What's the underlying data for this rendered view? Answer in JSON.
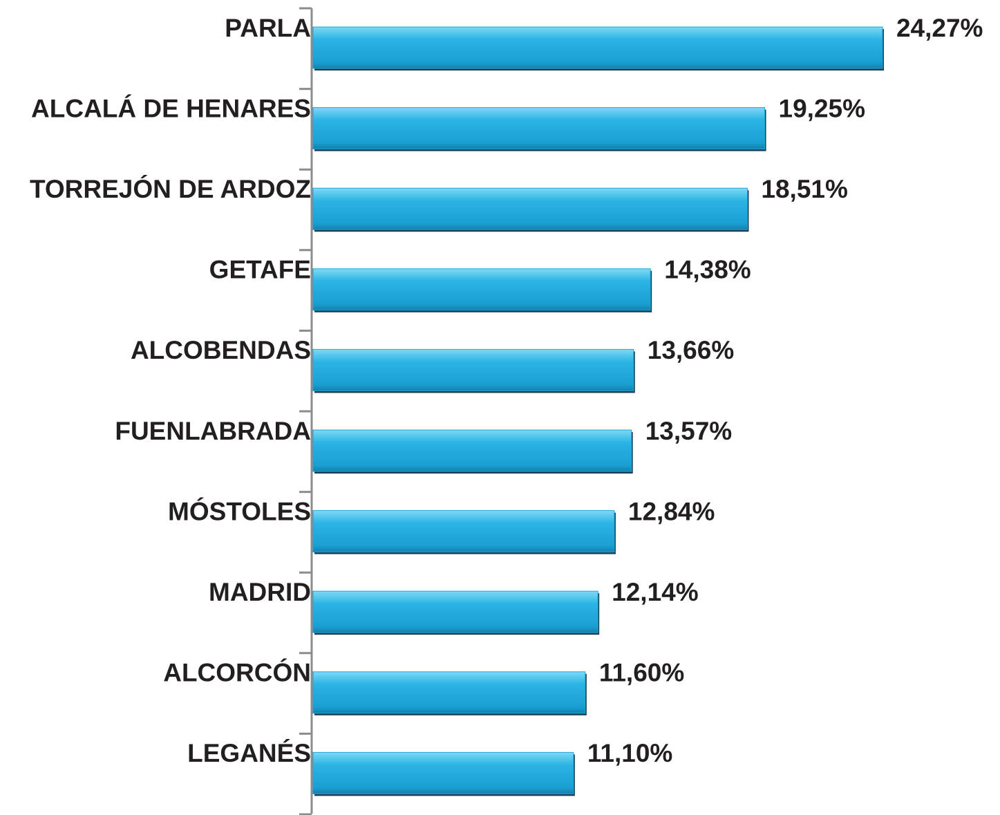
{
  "chart_data": {
    "type": "bar",
    "orientation": "horizontal",
    "categories": [
      "PARLA",
      "ALCALÁ DE HENARES",
      "TORREJÓN DE ARDOZ",
      "GETAFE",
      "ALCOBENDAS",
      "FUENLABRADA",
      "MÓSTOLES",
      "MADRID",
      "ALCORCÓN",
      "LEGANÉS"
    ],
    "values": [
      24.27,
      19.25,
      18.51,
      14.38,
      13.66,
      13.57,
      12.84,
      12.14,
      11.6,
      11.1
    ],
    "value_labels": [
      "24,27%",
      "19,25%",
      "18,51%",
      "14,38%",
      "13,66%",
      "13,57%",
      "12,84%",
      "12,14%",
      "11,60%",
      "11,10%"
    ],
    "color": "#1ea7d9"
  }
}
